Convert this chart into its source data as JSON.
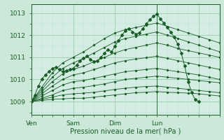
{
  "xlabel": "Pression niveau de la mer( hPa )",
  "bg_color": "#cce8d8",
  "plot_bg_color": "#d4ede2",
  "grid_color_major": "#99ccaa",
  "grid_color_minor": "#bbddcc",
  "line_color": "#1a5c28",
  "ylim": [
    1008.4,
    1013.4
  ],
  "xlim": [
    0,
    108
  ],
  "xtick_positions": [
    0,
    24,
    48,
    72,
    96
  ],
  "xtick_labels": [
    "Ven",
    "Sam",
    "Dim",
    "Lun",
    ""
  ],
  "ytick_positions": [
    1009,
    1010,
    1011,
    1012,
    1013
  ],
  "ytick_labels": [
    "1009",
    "1010",
    "1011",
    "1012",
    "1013"
  ],
  "vline_x": 72,
  "series": [
    {
      "x": [
        0,
        6,
        12,
        18,
        24,
        30,
        36,
        42,
        48,
        54,
        60,
        66,
        72,
        78,
        84,
        90,
        96,
        102,
        108
      ],
      "y": [
        1009.0,
        1009.05,
        1009.1,
        1009.12,
        1009.15,
        1009.15,
        1009.2,
        1009.25,
        1009.3,
        1009.35,
        1009.4,
        1009.42,
        1009.45,
        1009.42,
        1009.4,
        1009.38,
        1009.35,
        1009.3,
        1009.25
      ]
    },
    {
      "x": [
        0,
        6,
        12,
        18,
        24,
        30,
        36,
        42,
        48,
        54,
        60,
        66,
        72,
        78,
        84,
        90,
        96,
        102,
        108
      ],
      "y": [
        1009.0,
        1009.1,
        1009.2,
        1009.3,
        1009.35,
        1009.38,
        1009.42,
        1009.48,
        1009.55,
        1009.6,
        1009.65,
        1009.68,
        1009.7,
        1009.65,
        1009.6,
        1009.55,
        1009.5,
        1009.45,
        1009.4
      ]
    },
    {
      "x": [
        0,
        6,
        12,
        18,
        24,
        30,
        36,
        42,
        48,
        54,
        60,
        66,
        72,
        78,
        84,
        90,
        96,
        102,
        108
      ],
      "y": [
        1009.0,
        1009.15,
        1009.3,
        1009.5,
        1009.6,
        1009.65,
        1009.72,
        1009.8,
        1009.9,
        1010.0,
        1010.05,
        1010.1,
        1010.15,
        1010.1,
        1010.05,
        1010.0,
        1009.95,
        1009.9,
        1009.85
      ]
    },
    {
      "x": [
        0,
        6,
        12,
        18,
        24,
        30,
        36,
        42,
        48,
        54,
        60,
        66,
        72,
        78,
        84,
        90,
        96,
        102,
        108
      ],
      "y": [
        1009.0,
        1009.25,
        1009.5,
        1009.75,
        1009.9,
        1009.95,
        1010.05,
        1010.15,
        1010.25,
        1010.35,
        1010.4,
        1010.45,
        1010.5,
        1010.42,
        1010.35,
        1010.28,
        1010.2,
        1010.1,
        1010.0
      ]
    },
    {
      "x": [
        0,
        6,
        12,
        18,
        24,
        30,
        36,
        42,
        48,
        54,
        60,
        66,
        72,
        78,
        84,
        90,
        96,
        102,
        108
      ],
      "y": [
        1009.0,
        1009.35,
        1009.7,
        1010.0,
        1010.2,
        1010.3,
        1010.45,
        1010.6,
        1010.75,
        1010.85,
        1010.92,
        1010.98,
        1011.05,
        1010.95,
        1010.85,
        1010.75,
        1010.65,
        1010.55,
        1010.45
      ]
    },
    {
      "x": [
        0,
        6,
        12,
        18,
        24,
        30,
        36,
        42,
        48,
        54,
        60,
        66,
        72,
        78,
        84,
        90,
        96,
        102,
        108
      ],
      "y": [
        1009.0,
        1009.45,
        1009.9,
        1010.25,
        1010.45,
        1010.6,
        1010.8,
        1011.0,
        1011.2,
        1011.35,
        1011.45,
        1011.55,
        1011.65,
        1011.55,
        1011.4,
        1011.3,
        1011.2,
        1011.1,
        1011.0
      ]
    },
    {
      "x": [
        0,
        6,
        12,
        18,
        24,
        30,
        36,
        42,
        48,
        54,
        60,
        66,
        72,
        78,
        84,
        90,
        96,
        102,
        108
      ],
      "y": [
        1009.0,
        1009.55,
        1010.1,
        1010.5,
        1010.75,
        1010.95,
        1011.2,
        1011.45,
        1011.7,
        1011.85,
        1011.95,
        1012.05,
        1012.15,
        1012.0,
        1011.85,
        1011.7,
        1011.55,
        1011.4,
        1011.25
      ]
    },
    {
      "x": [
        0,
        6,
        12,
        18,
        24,
        30,
        36,
        42,
        48,
        54,
        60,
        66,
        72,
        78,
        84,
        90,
        96,
        102,
        108
      ],
      "y": [
        1009.0,
        1009.65,
        1010.3,
        1010.75,
        1011.0,
        1011.25,
        1011.55,
        1011.85,
        1012.1,
        1012.25,
        1012.35,
        1012.45,
        1012.55,
        1012.4,
        1012.25,
        1012.1,
        1011.95,
        1011.8,
        1011.65
      ]
    }
  ],
  "wavy_series_x": [
    0,
    2,
    4,
    6,
    8,
    10,
    12,
    14,
    16,
    18,
    20,
    22,
    24,
    26,
    28,
    30,
    32,
    34,
    36,
    38,
    40,
    42,
    44,
    46,
    48,
    50,
    52,
    54,
    56,
    58,
    60,
    62,
    64,
    66,
    68,
    70,
    72,
    74,
    76,
    78,
    80,
    82,
    84,
    86,
    88,
    90,
    92,
    94,
    96
  ],
  "wavy_series_y": [
    1009.0,
    1009.3,
    1009.7,
    1010.0,
    1010.2,
    1010.35,
    1010.5,
    1010.55,
    1010.45,
    1010.35,
    1010.4,
    1010.45,
    1010.5,
    1010.65,
    1010.85,
    1010.95,
    1011.05,
    1010.9,
    1010.8,
    1010.85,
    1011.0,
    1011.2,
    1011.35,
    1011.25,
    1011.5,
    1011.75,
    1012.0,
    1012.2,
    1012.3,
    1012.15,
    1012.05,
    1012.1,
    1012.3,
    1012.5,
    1012.7,
    1012.85,
    1012.95,
    1012.75,
    1012.55,
    1012.35,
    1012.15,
    1011.9,
    1011.6,
    1011.2,
    1010.6,
    1009.9,
    1009.4,
    1009.1,
    1009.0
  ]
}
